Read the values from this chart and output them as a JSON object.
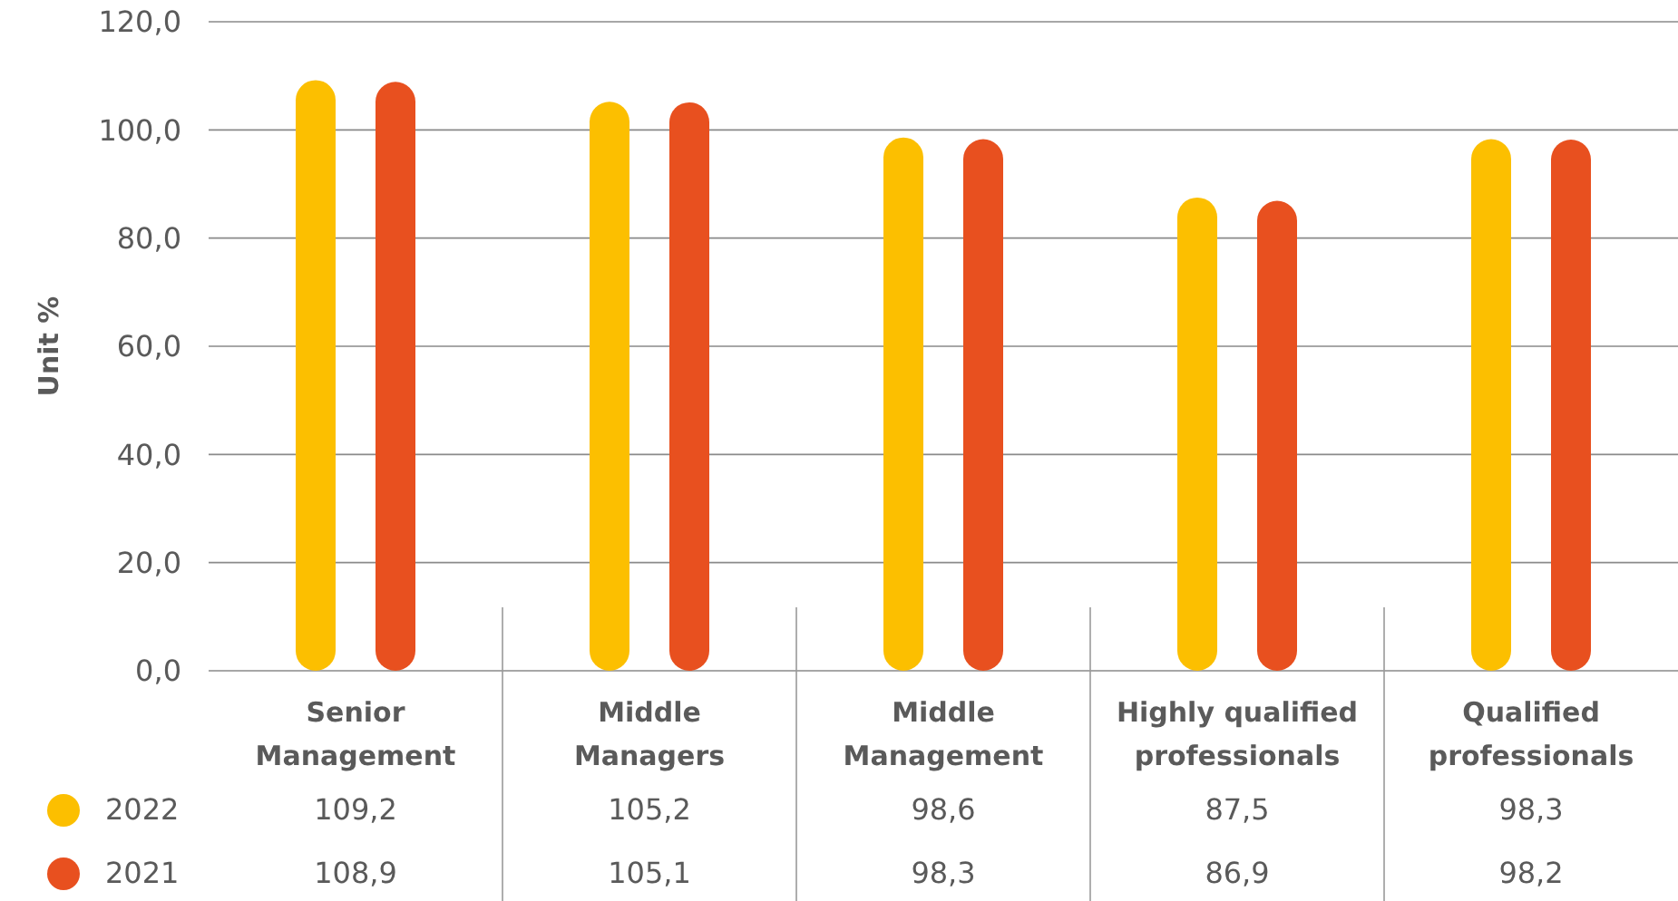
{
  "chart_data": {
    "type": "bar",
    "ylabel": "Unit %",
    "categories": [
      "Senior Management",
      "Middle Managers",
      "Middle Management",
      "Highly qualified professionals",
      "Qualified professionals"
    ],
    "series": [
      {
        "name": "2022",
        "color": "#fcbf00",
        "values": [
          109.2,
          105.2,
          98.6,
          87.5,
          98.3
        ],
        "value_labels": [
          "109,2",
          "105,2",
          "98,6",
          "87,5",
          "98,3"
        ]
      },
      {
        "name": "2021",
        "color": "#e8501f",
        "values": [
          108.9,
          105.1,
          98.3,
          86.9,
          98.2
        ],
        "value_labels": [
          "108,9",
          "105,1",
          "98,3",
          "86,9",
          "98,2"
        ]
      }
    ],
    "ylim": [
      0,
      120
    ],
    "yticks": [
      {
        "value": 0,
        "label": "0,0"
      },
      {
        "value": 20,
        "label": "20,0"
      },
      {
        "value": 40,
        "label": "40,0"
      },
      {
        "value": 60,
        "label": "60,0"
      },
      {
        "value": 80,
        "label": "80,0"
      },
      {
        "value": 100,
        "label": "100,0"
      },
      {
        "value": 120,
        "label": "120,0"
      }
    ],
    "grid": "y",
    "legend": "bottom left"
  }
}
